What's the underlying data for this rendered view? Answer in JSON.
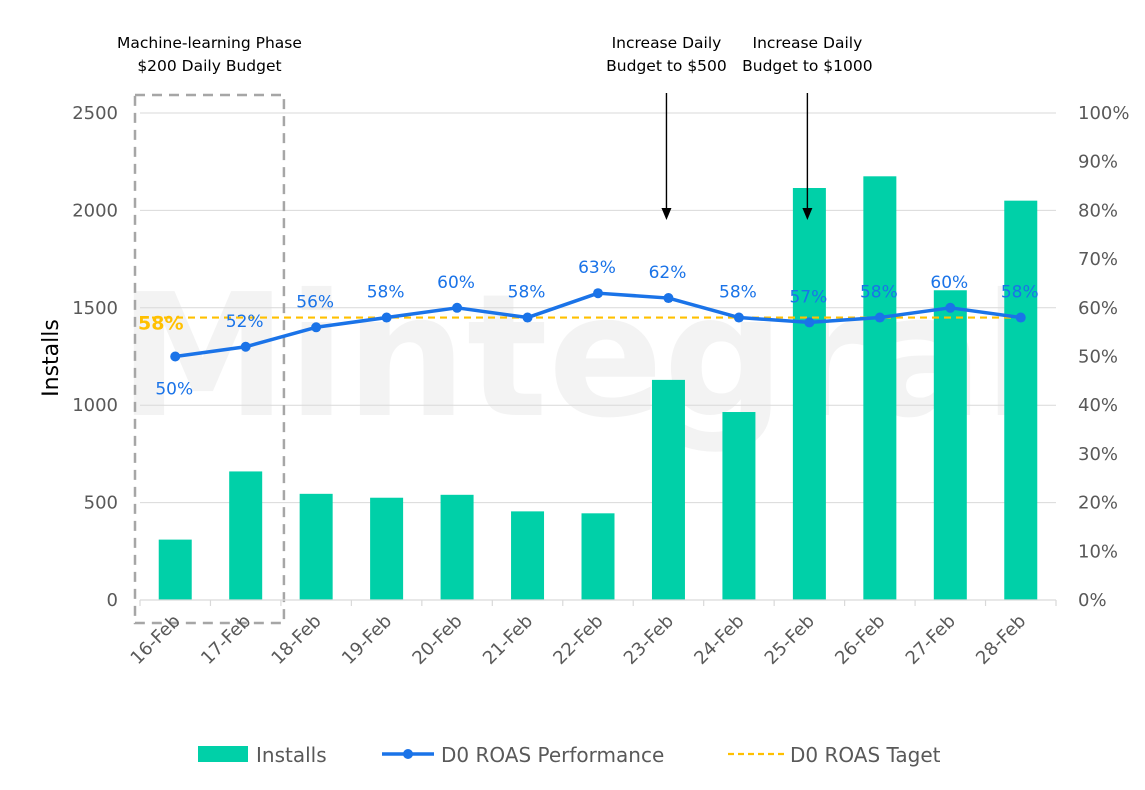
{
  "watermark": "Mintegral",
  "chart_data": {
    "type": "bar",
    "categories": [
      "16-Feb",
      "17-Feb",
      "18-Feb",
      "19-Feb",
      "20-Feb",
      "21-Feb",
      "22-Feb",
      "23-Feb",
      "24-Feb",
      "25-Feb",
      "26-Feb",
      "27-Feb",
      "28-Feb"
    ],
    "series": [
      {
        "name": "Installs",
        "type": "bar",
        "axis": "left",
        "color": "#00d0a8",
        "values": [
          310,
          660,
          545,
          525,
          540,
          455,
          445,
          1130,
          965,
          2115,
          2175,
          1590,
          2050
        ]
      },
      {
        "name": "D0 ROAS Performance",
        "type": "line",
        "axis": "right",
        "color": "#1a73e8",
        "values": [
          50,
          52,
          56,
          58,
          60,
          58,
          63,
          62,
          58,
          57,
          58,
          60,
          58
        ],
        "labels": [
          "50%",
          "52%",
          "56%",
          "58%",
          "60%",
          "58%",
          "63%",
          "62%",
          "58%",
          "57%",
          "58%",
          "60%",
          "58%"
        ]
      },
      {
        "name": "D0 ROAS Taget",
        "type": "line",
        "style": "dashed",
        "axis": "right",
        "color": "#ffc000",
        "value": 58,
        "label": "58%"
      }
    ],
    "ylabel": "Installs",
    "ylim": [
      0,
      2500
    ],
    "yticks": [
      "0",
      "500",
      "1000",
      "1500",
      "2000",
      "2500"
    ],
    "y2lim": [
      0,
      100
    ],
    "y2ticks": [
      "0%",
      "10%",
      "20%",
      "30%",
      "40%",
      "50%",
      "60%",
      "70%",
      "80%",
      "90%",
      "100%"
    ],
    "grid": true,
    "legend_position": "bottom",
    "annotations": [
      {
        "lines": [
          "Machine-learning Phase",
          "$200 Daily Budget"
        ],
        "category_span": [
          "16-Feb",
          "17-Feb"
        ],
        "style": "dashed-box"
      },
      {
        "lines": [
          "Increase Daily",
          "Budget to $500"
        ],
        "category": "23-Feb",
        "style": "arrow"
      },
      {
        "lines": [
          "Increase Daily",
          "Budget to $1000"
        ],
        "category": "25-Feb",
        "style": "arrow"
      }
    ]
  }
}
